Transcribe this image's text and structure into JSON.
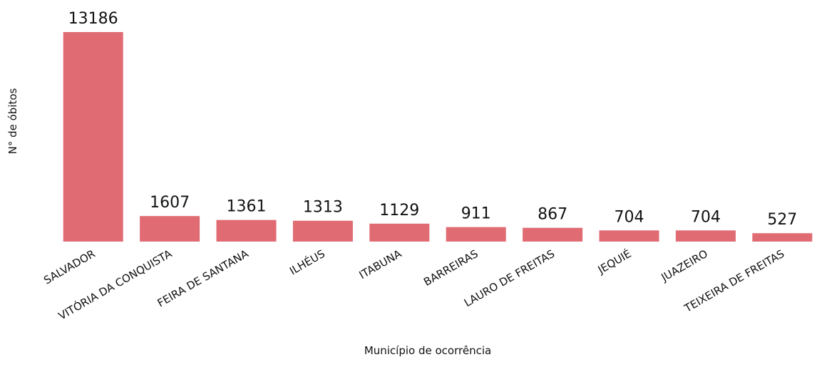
{
  "chart_data": {
    "type": "bar",
    "categories": [
      "SALVADOR",
      "VITÓRIA DA CONQUISTA",
      "FEIRA DE SANTANA",
      "ILHÉUS",
      "ITABUNA",
      "BARREIRAS",
      "LAURO DE FREITAS",
      "JEQUIÉ",
      "JUAZEIRO",
      "TEIXEIRA DE FREITAS"
    ],
    "values": [
      13186,
      1607,
      1361,
      1313,
      1129,
      911,
      867,
      704,
      704,
      527
    ],
    "color": "#e06b73",
    "xlabel": "Município de ocorrência",
    "ylabel": "N° de óbitos"
  }
}
